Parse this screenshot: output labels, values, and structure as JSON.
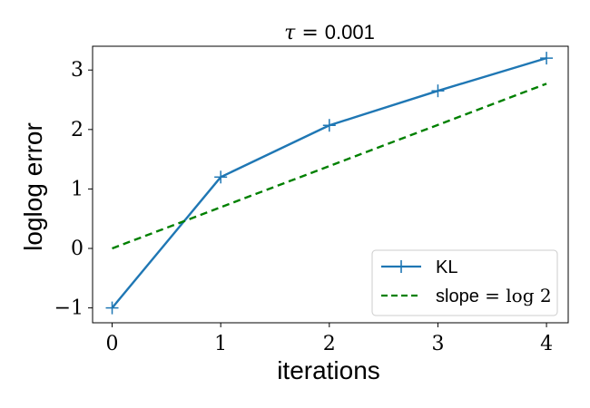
{
  "chart_data": {
    "type": "line",
    "title": {
      "symbol": "τ",
      "equals": " = ",
      "value": "0.001"
    },
    "xlabel": "iterations",
    "ylabel": "loglog error",
    "xlim": [
      -0.18,
      4.2
    ],
    "ylim": [
      -1.25,
      3.4
    ],
    "xticks": [
      0,
      1,
      2,
      3,
      4
    ],
    "xtick_labels": [
      "0",
      "1",
      "2",
      "3",
      "4"
    ],
    "yticks": [
      -1,
      0,
      1,
      2,
      3
    ],
    "ytick_labels": [
      "−1",
      "0",
      "1",
      "2",
      "3"
    ],
    "grid": false,
    "legend_position": "lower-right",
    "series": [
      {
        "name": "KL",
        "style": "solid",
        "marker": "plus",
        "color": "#1f77b4",
        "x": [
          0,
          1,
          2,
          3,
          4
        ],
        "y": [
          -1.0,
          1.2,
          2.07,
          2.65,
          3.2
        ]
      },
      {
        "name_text": "slope",
        "name_math": " = log 2",
        "style": "dashed",
        "marker": "none",
        "color": "#008000",
        "x": [
          0,
          4
        ],
        "y": [
          0.0,
          2.77
        ]
      }
    ]
  }
}
